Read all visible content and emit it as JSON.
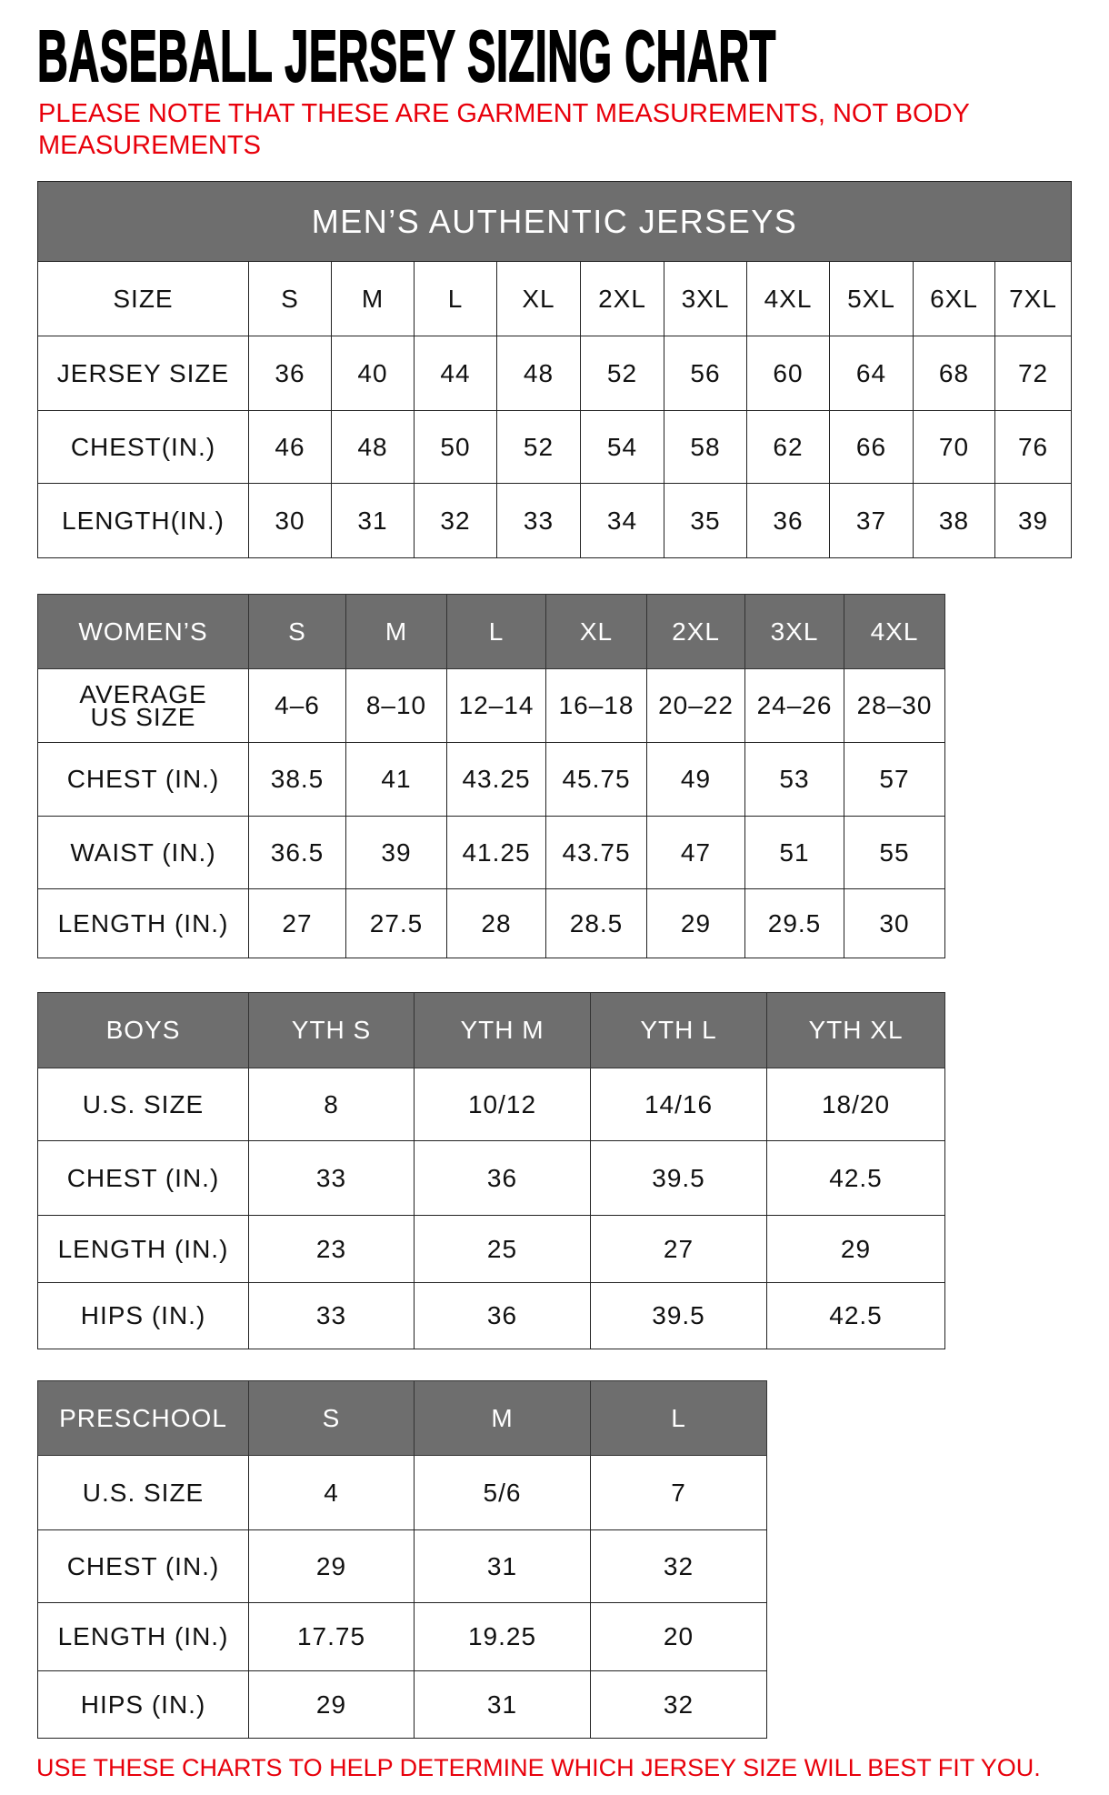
{
  "title": "BASEBALL JERSEY SIZING CHART",
  "note": "PLEASE NOTE THAT THESE ARE GARMENT MEASUREMENTS, NOT BODY MEASUREMENTS",
  "footer": "USE THESE CHARTS TO HELP DETERMINE WHICH JERSEY SIZE WILL BEST FIT YOU.",
  "colors": {
    "header_bg": "#6e6e6e",
    "note_red": "#e8000b"
  },
  "tables": [
    {
      "key": "mens",
      "banner": "MEN’S AUTHENTIC JERSEYS",
      "header": [
        "SIZE",
        "S",
        "M",
        "L",
        "XL",
        "2XL",
        "3XL",
        "4XL",
        "5XL",
        "6XL",
        "7XL"
      ],
      "header_style": "plain",
      "rows": [
        [
          "JERSEY SIZE",
          "36",
          "40",
          "44",
          "48",
          "52",
          "56",
          "60",
          "64",
          "68",
          "72"
        ],
        [
          "CHEST(IN.)",
          "46",
          "48",
          "50",
          "52",
          "54",
          "58",
          "62",
          "66",
          "70",
          "76"
        ],
        [
          "LENGTH(IN.)",
          "30",
          "31",
          "32",
          "33",
          "34",
          "35",
          "36",
          "37",
          "38",
          "39"
        ]
      ]
    },
    {
      "key": "womens",
      "header": [
        "WOMEN’S",
        "S",
        "M",
        "L",
        "XL",
        "2XL",
        "3XL",
        "4XL"
      ],
      "header_style": "gray",
      "rows": [
        [
          "AVERAGE\nUS SIZE",
          "4–6",
          "8–10",
          "12–14",
          "16–18",
          "20–22",
          "24–26",
          "28–30"
        ],
        [
          "CHEST (IN.)",
          "38.5",
          "41",
          "43.25",
          "45.75",
          "49",
          "53",
          "57"
        ],
        [
          "WAIST (IN.)",
          "36.5",
          "39",
          "41.25",
          "43.75",
          "47",
          "51",
          "55"
        ],
        [
          "LENGTH (IN.)",
          "27",
          "27.5",
          "28",
          "28.5",
          "29",
          "29.5",
          "30"
        ]
      ]
    },
    {
      "key": "boys",
      "header": [
        "BOYS",
        "YTH S",
        "YTH M",
        "YTH L",
        "YTH XL"
      ],
      "header_style": "gray",
      "rows": [
        [
          "U.S. SIZE",
          "8",
          "10/12",
          "14/16",
          "18/20"
        ],
        [
          "CHEST (IN.)",
          "33",
          "36",
          "39.5",
          "42.5"
        ],
        [
          "LENGTH (IN.)",
          "23",
          "25",
          "27",
          "29"
        ],
        [
          "HIPS (IN.)",
          "33",
          "36",
          "39.5",
          "42.5"
        ]
      ]
    },
    {
      "key": "preschool",
      "header": [
        "PRESCHOOL",
        "S",
        "M",
        "L"
      ],
      "header_style": "gray",
      "rows": [
        [
          "U.S. SIZE",
          "4",
          "5/6",
          "7"
        ],
        [
          "CHEST (IN.)",
          "29",
          "31",
          "32"
        ],
        [
          "LENGTH (IN.)",
          "17.75",
          "19.25",
          "20"
        ],
        [
          "HIPS (IN.)",
          "29",
          "31",
          "32"
        ]
      ]
    }
  ]
}
